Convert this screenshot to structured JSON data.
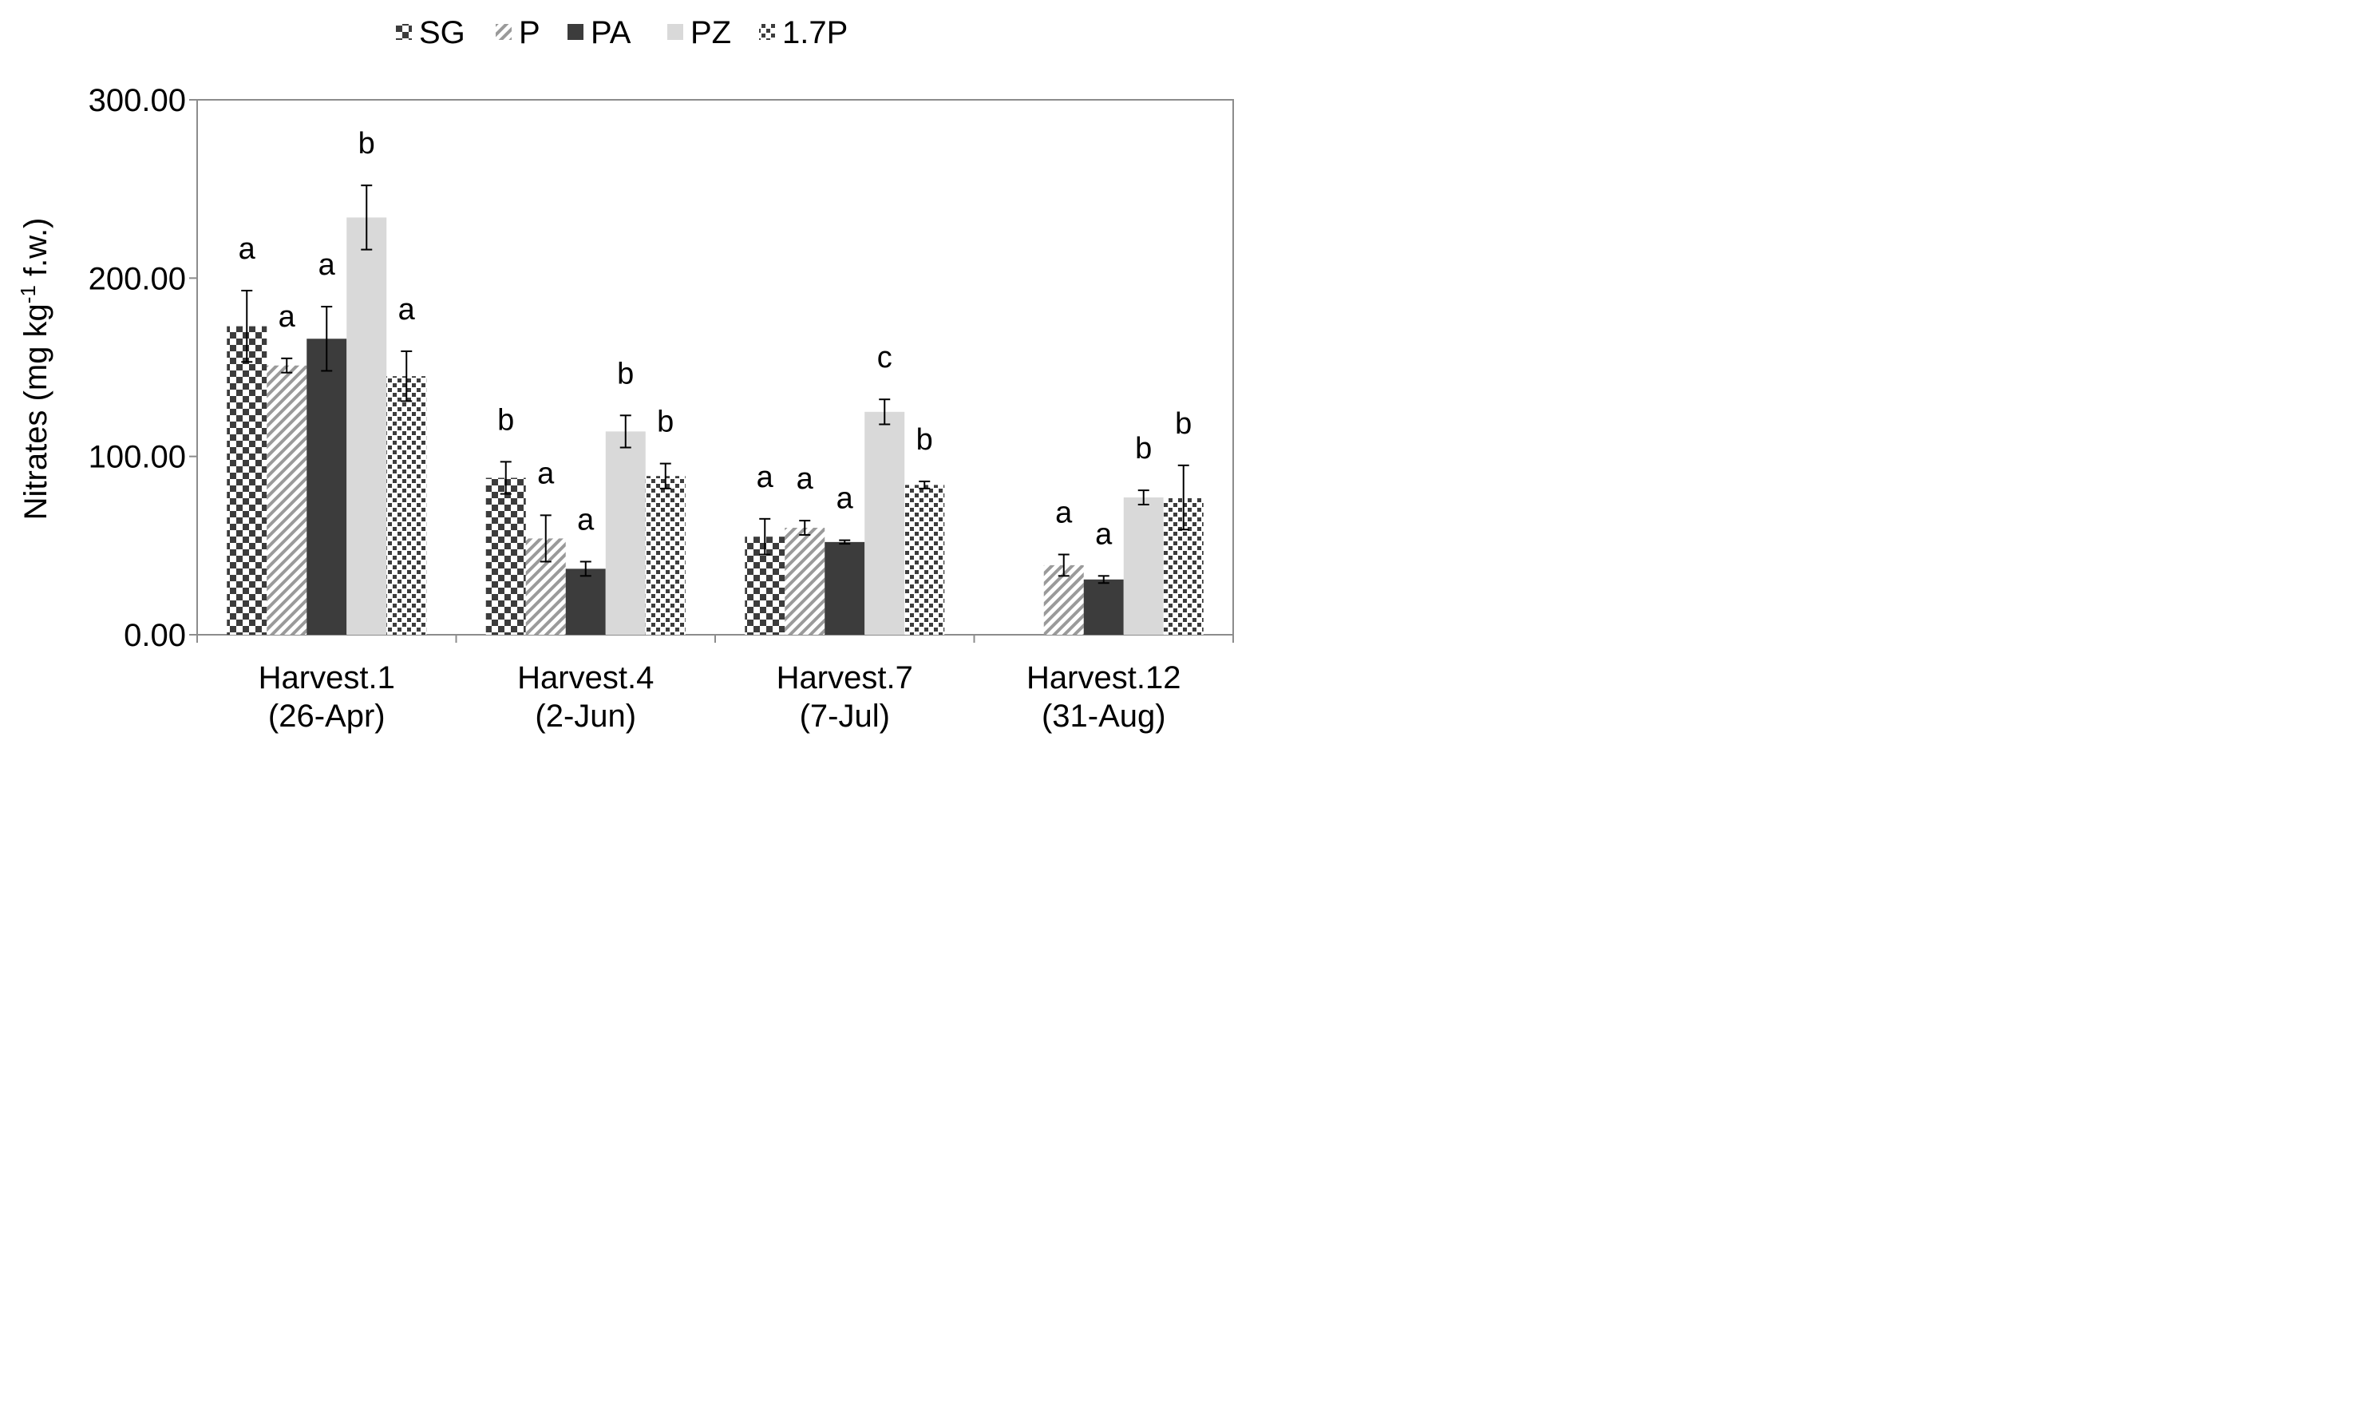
{
  "chart_data": {
    "type": "bar",
    "title": "",
    "xlabel": "",
    "ylabel_main": "Nitrates (mg kg",
    "ylabel_sup": "-1",
    "ylabel_tail": " f.w.)",
    "ylim": [
      0,
      300
    ],
    "yticks": [
      "0.00",
      "100.00",
      "200.00",
      "300.00"
    ],
    "ytick_values": [
      0,
      100,
      200,
      300
    ],
    "grid": false,
    "legend_position": "top",
    "categories": [
      [
        "Harvest.1",
        "(26-Apr)"
      ],
      [
        "Harvest.4",
        "(2-Jun)"
      ],
      [
        "Harvest.7",
        "(7-Jul)"
      ],
      [
        "Harvest.12",
        "(31-Aug)"
      ]
    ],
    "series": [
      {
        "name": "SG",
        "pattern": "checker",
        "values": [
          173,
          88,
          55,
          null
        ],
        "errors": [
          20,
          9,
          10,
          null
        ],
        "letters": [
          "a",
          "b",
          "a",
          ""
        ]
      },
      {
        "name": "P",
        "pattern": "diag",
        "values": [
          151,
          54,
          60,
          39
        ],
        "errors": [
          4,
          13,
          4,
          6
        ],
        "letters": [
          "a",
          "a",
          "a",
          "a"
        ]
      },
      {
        "name": "PA",
        "pattern": "solid",
        "values": [
          166,
          37,
          52,
          31
        ],
        "errors": [
          18,
          4,
          1,
          2
        ],
        "letters": [
          "a",
          "a",
          "a",
          "a"
        ]
      },
      {
        "name": "PZ",
        "pattern": "light",
        "values": [
          234,
          114,
          125,
          77
        ],
        "errors": [
          18,
          9,
          7,
          4
        ],
        "letters": [
          "b",
          "b",
          "c",
          "b"
        ]
      },
      {
        "name": "1.7P",
        "pattern": "dots",
        "values": [
          145,
          89,
          84,
          77
        ],
        "errors": [
          14,
          7,
          2,
          18
        ],
        "letters": [
          "a",
          "b",
          "b",
          "b"
        ]
      }
    ],
    "colors": {
      "axis": "#8c8c8c",
      "dark": "#3c3c3c",
      "light": "#d9d9d9",
      "diag": "#9a9a9a",
      "error_bar": "#000000"
    }
  }
}
